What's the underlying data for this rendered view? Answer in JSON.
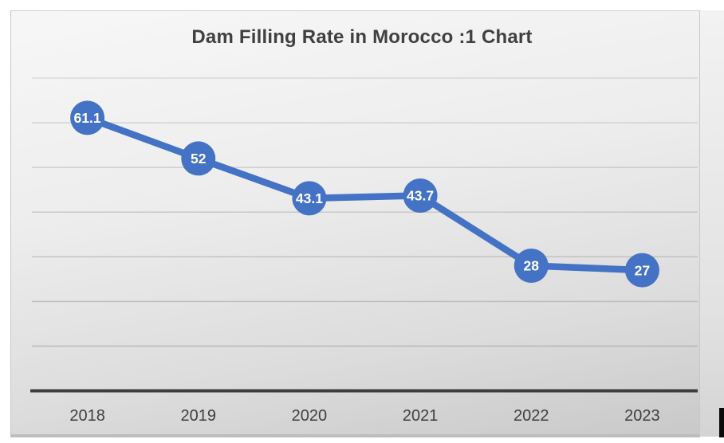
{
  "chart_data": {
    "type": "line",
    "title": "Dam Filling Rate in Morocco :1 Chart",
    "categories": [
      "2018",
      "2019",
      "2020",
      "2021",
      "2022",
      "2023"
    ],
    "series": [
      {
        "name": "Dam Filling Rate",
        "values": [
          61.1,
          52,
          43.1,
          43.7,
          28,
          27
        ],
        "labels": [
          "61.1",
          "52",
          "43.1",
          "43.7",
          "28",
          "27"
        ]
      }
    ],
    "xlabel": "",
    "ylabel": "",
    "ylim": [
      0,
      70
    ],
    "grid_interval": 10,
    "grid": true,
    "legend": "none",
    "data_labels": "inside-markers",
    "marker_shape": "circle",
    "colors": {
      "series": "#4472C4",
      "marker_text": "#ffffff",
      "title": "#404040",
      "axis_labels": "#3f3f3f",
      "gridline": "#aeaeae",
      "axis_line": "#3d3d3d"
    }
  }
}
